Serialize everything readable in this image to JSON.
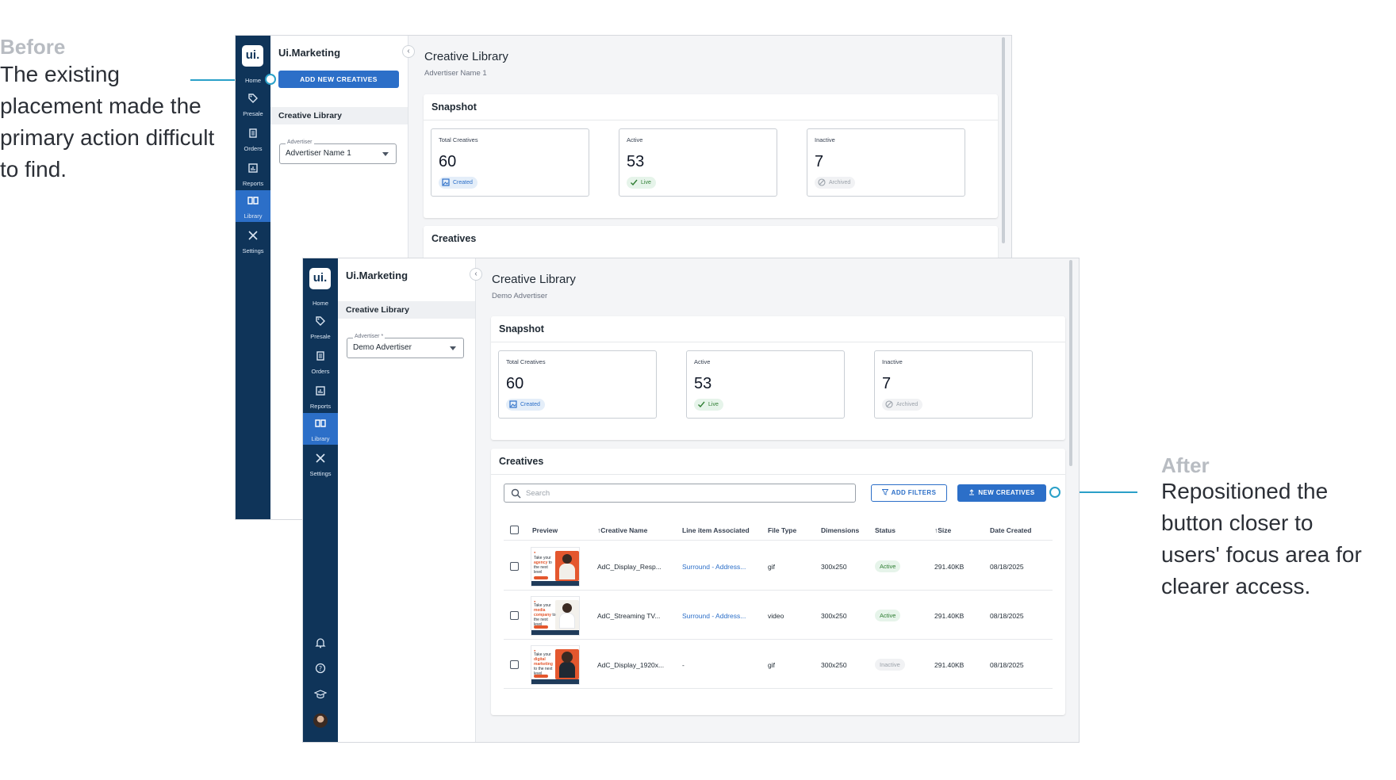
{
  "annotations": {
    "before": {
      "heading": "Before",
      "lines": [
        "The existing",
        "placement made the",
        "primary action difficult",
        "to find."
      ]
    },
    "after": {
      "heading": "After",
      "lines": [
        "Repositioned the",
        "button closer to",
        "users' focus area for",
        "clearer access."
      ]
    },
    "accent_color": "#2aa0c8"
  },
  "before_screen": {
    "rail": {
      "logo": "ui.",
      "items": [
        {
          "label": "Home",
          "icon": "home-logo-icon"
        },
        {
          "label": "Presale",
          "icon": "tag-icon"
        },
        {
          "label": "Orders",
          "icon": "clipboard-icon"
        },
        {
          "label": "Reports",
          "icon": "chart-icon"
        },
        {
          "label": "Library",
          "icon": "book-icon",
          "active": true
        },
        {
          "label": "Settings",
          "icon": "tools-icon"
        }
      ]
    },
    "panel": {
      "title": "Ui.Marketing",
      "add_button": "ADD NEW CREATIVES",
      "nav_item": "Creative Library",
      "advertiser_label": "Advertiser",
      "advertiser_value": "Advertiser Name 1"
    },
    "main": {
      "title": "Creative Library",
      "subtitle": "Advertiser Name 1",
      "snapshot_title": "Snapshot",
      "creatives_title": "Creatives",
      "stats": [
        {
          "label": "Total Creatives",
          "value": "60",
          "chip": "Created",
          "kind": "created"
        },
        {
          "label": "Active",
          "value": "53",
          "chip": "Live",
          "kind": "live"
        },
        {
          "label": "Inactive",
          "value": "7",
          "chip": "Archived",
          "kind": "archived"
        }
      ]
    }
  },
  "after_screen": {
    "rail": {
      "logo": "ui.",
      "items": [
        {
          "label": "Home",
          "icon": "home-logo-icon"
        },
        {
          "label": "Presale",
          "icon": "tag-icon"
        },
        {
          "label": "Orders",
          "icon": "clipboard-icon"
        },
        {
          "label": "Reports",
          "icon": "chart-icon"
        },
        {
          "label": "Library",
          "icon": "book-icon",
          "active": true
        },
        {
          "label": "Settings",
          "icon": "tools-icon"
        }
      ],
      "footer_icons": [
        "bell-icon",
        "help-icon",
        "graduation-cap-icon",
        "avatar"
      ]
    },
    "panel": {
      "title": "Ui.Marketing",
      "nav_item": "Creative Library",
      "advertiser_label": "Advertiser *",
      "advertiser_value": "Demo Advertiser"
    },
    "main": {
      "title": "Creative Library",
      "subtitle": "Demo Advertiser",
      "snapshot_title": "Snapshot",
      "creatives_title": "Creatives",
      "stats": [
        {
          "label": "Total Creatives",
          "value": "60",
          "chip": "Created",
          "kind": "created"
        },
        {
          "label": "Active",
          "value": "53",
          "chip": "Live",
          "kind": "live"
        },
        {
          "label": "Inactive",
          "value": "7",
          "chip": "Archived",
          "kind": "archived"
        }
      ],
      "search_placeholder": "Search",
      "add_filters": "ADD FILTERS",
      "new_creatives": "NEW CREATIVES",
      "columns": [
        "Preview",
        "Creative Name",
        "Line item Associated",
        "File Type",
        "Dimensions",
        "Status",
        "Size",
        "Date Created"
      ],
      "rows": [
        {
          "thumb_words": [
            "Take your",
            "agency",
            "to the",
            "next level"
          ],
          "name": "AdC_Display_Resp...",
          "line_item": "Surround - Address...",
          "file_type": "gif",
          "dimensions": "300x250",
          "status": "Active",
          "status_kind": "active",
          "size": "291.40KB",
          "date": "08/18/2025"
        },
        {
          "thumb_words": [
            "Take your",
            "media",
            "company",
            "to the",
            "next level"
          ],
          "name": "AdC_Streaming TV...",
          "line_item": "Surround - Address...",
          "file_type": "video",
          "dimensions": "300x250",
          "status": "Active",
          "status_kind": "active",
          "size": "291.40KB",
          "date": "08/18/2025"
        },
        {
          "thumb_words": [
            "Take your",
            "digital",
            "marketing",
            "to the",
            "next level"
          ],
          "name": "AdC_Display_1920x...",
          "line_item": "-",
          "file_type": "gif",
          "dimensions": "300x250",
          "status": "Inactive",
          "status_kind": "inactive",
          "size": "291.40KB",
          "date": "08/18/2025"
        }
      ]
    }
  }
}
